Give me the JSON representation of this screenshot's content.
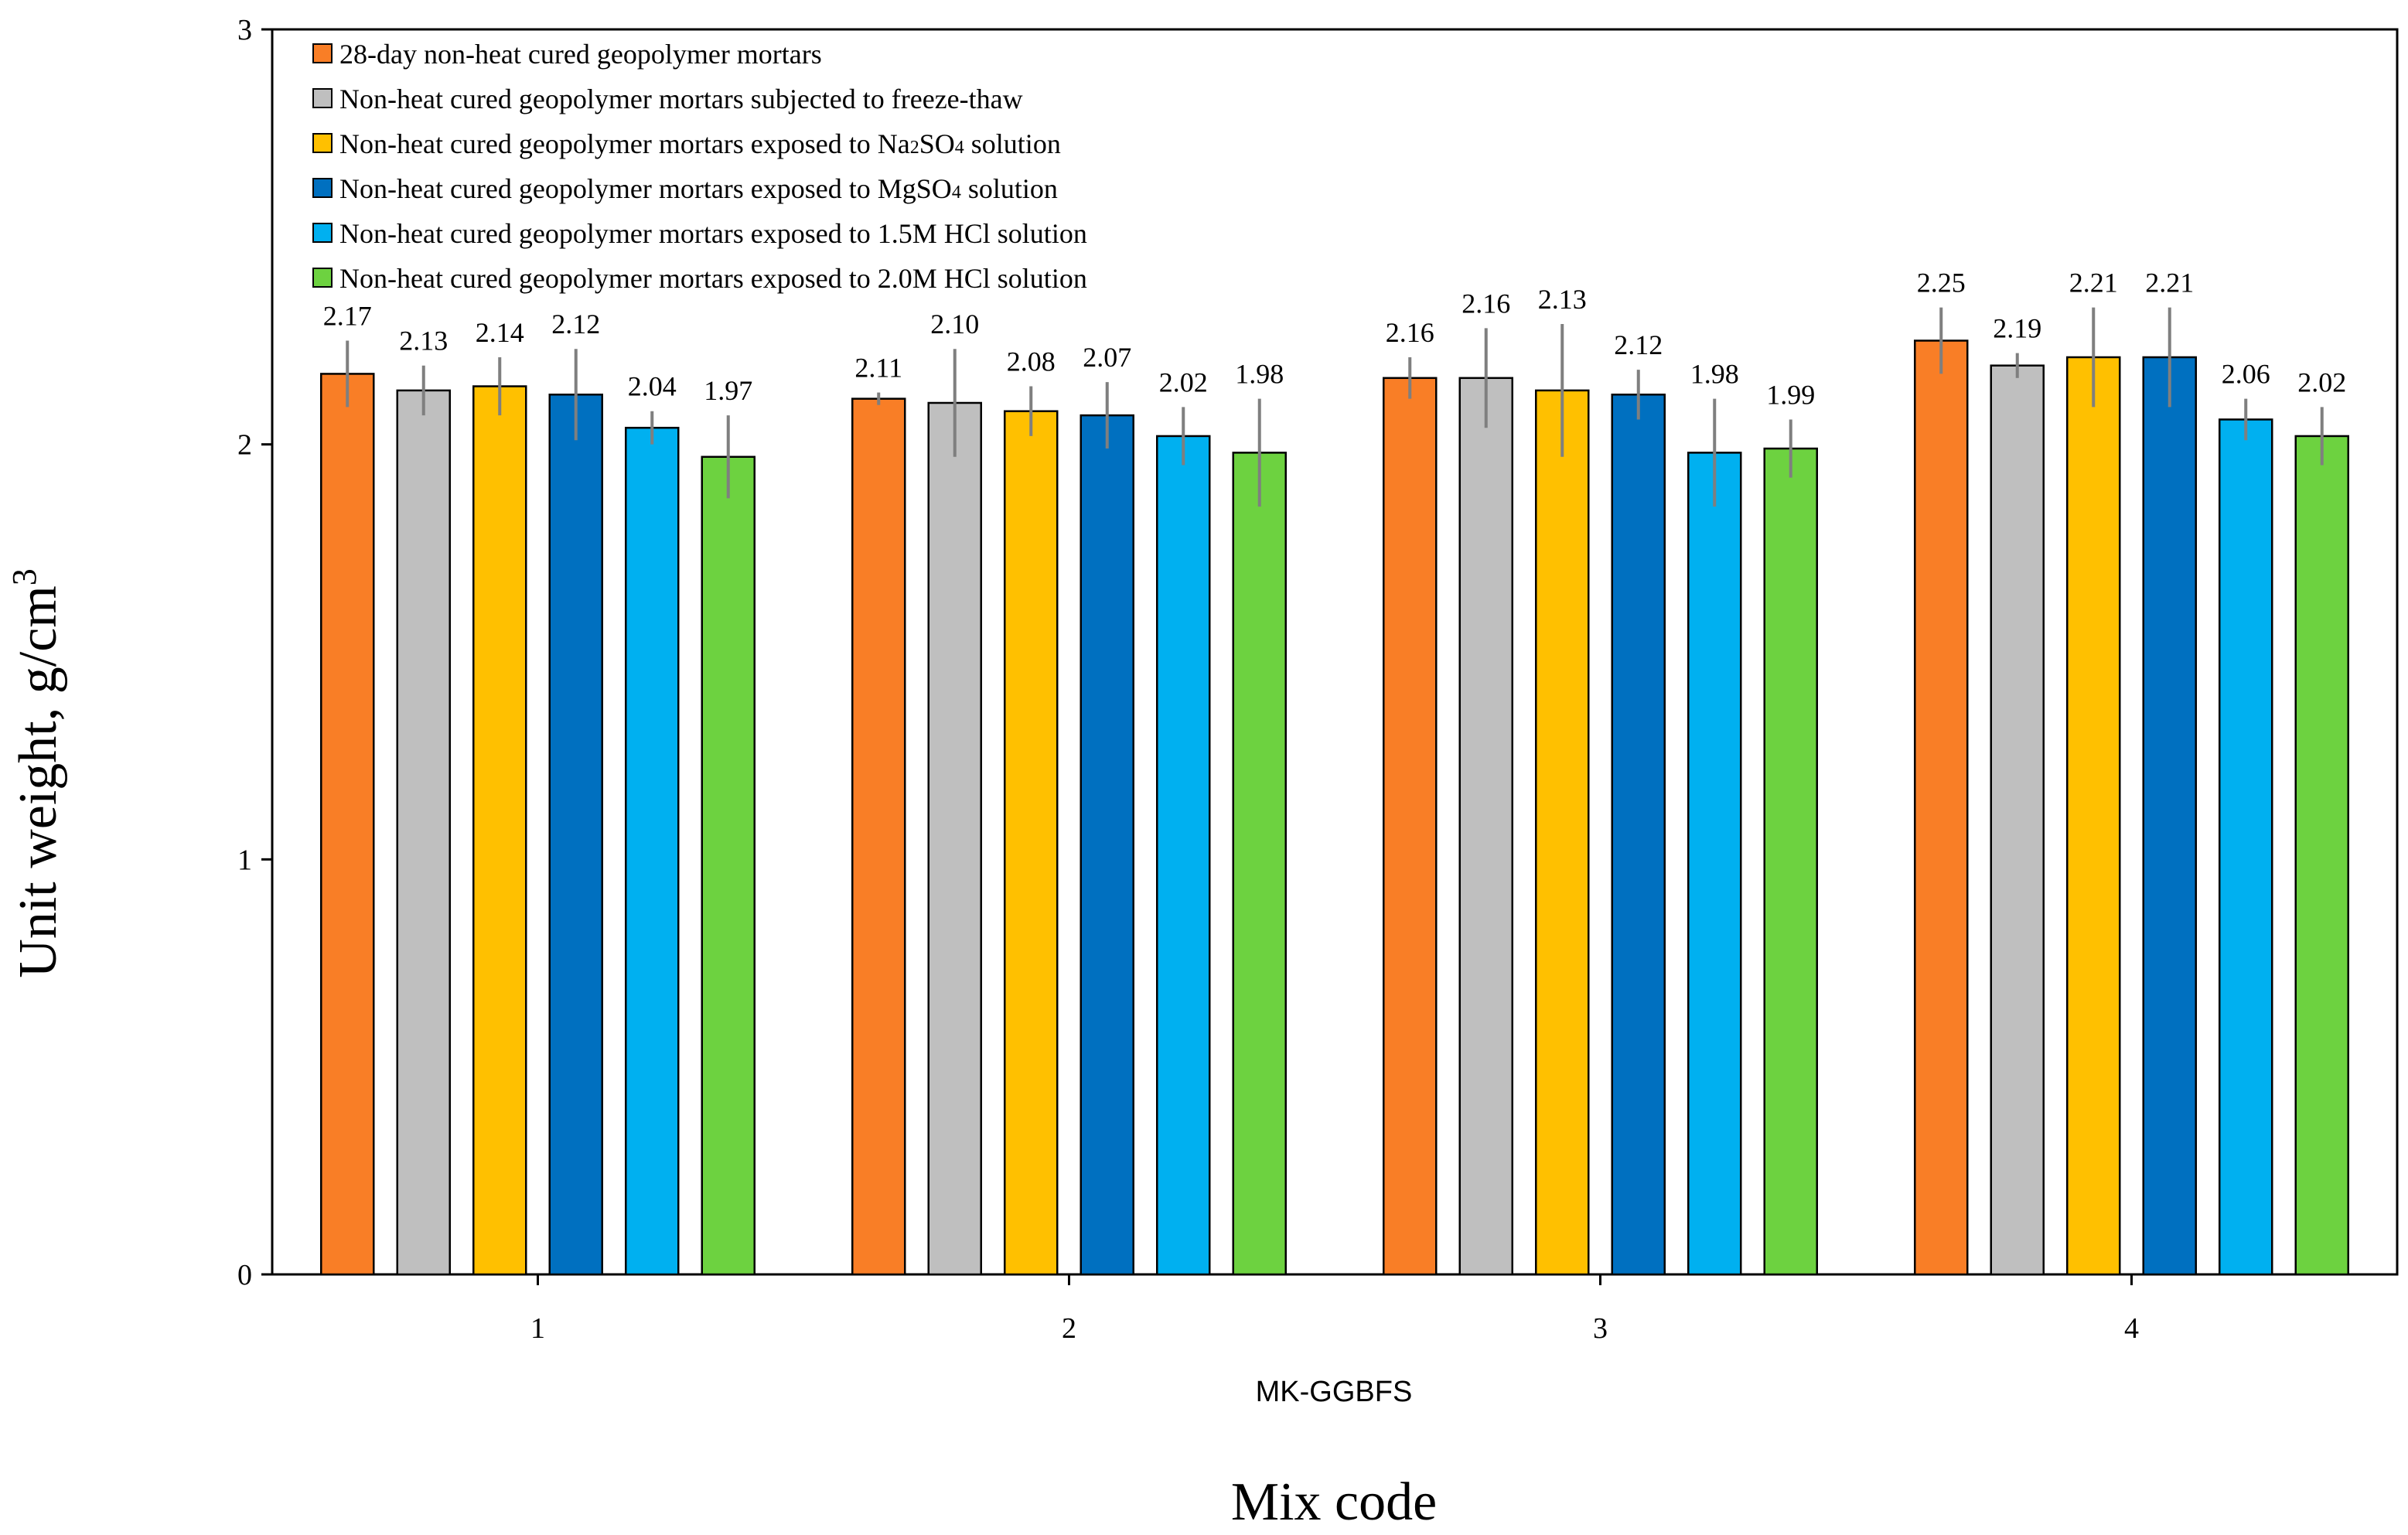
{
  "chart_data": {
    "type": "bar",
    "title": "",
    "ylabel": "Unit weight, g/cm³",
    "ylabel_base": "Unit weight, g/cm",
    "ylabel_sup": "3",
    "xlabel": "Mix code",
    "group_label": "MK-GGBFS",
    "categories": [
      "1",
      "2",
      "3",
      "4"
    ],
    "ylim": [
      0,
      3
    ],
    "yticks": [
      "0",
      "1",
      "2",
      "3"
    ],
    "grid": false,
    "legend_position": "top-left",
    "series": [
      {
        "name": "28-day non-heat cured geopolymer mortars",
        "legend_parts": [
          "28-day non-heat cured geopolymer mortars"
        ],
        "color": "#F97E26",
        "values": [
          2.17,
          2.11,
          2.16,
          2.25
        ],
        "labels": [
          "2.17",
          "2.11",
          "2.16",
          "2.25"
        ],
        "errors": [
          0.08,
          0.015,
          0.05,
          0.08
        ]
      },
      {
        "name": "Non-heat cured geopolymer mortars subjected to freeze-thaw",
        "legend_parts": [
          "Non-heat cured geopolymer mortars subjected to freeze-thaw"
        ],
        "color": "#BFBFBF",
        "values": [
          2.13,
          2.1,
          2.16,
          2.19
        ],
        "labels": [
          "2.13",
          "2.10",
          "2.16",
          "2.19"
        ],
        "errors": [
          0.06,
          0.13,
          0.12,
          0.03
        ]
      },
      {
        "name": "Non-heat cured geopolymer mortars exposed to Na₂SO₄ solution",
        "legend_parts": [
          "Non-heat cured geopolymer mortars exposed to Na",
          "2",
          "SO",
          "4",
          " solution"
        ],
        "color": "#FFC000",
        "values": [
          2.14,
          2.08,
          2.13,
          2.21
        ],
        "labels": [
          "2.14",
          "2.08",
          "2.13",
          "2.21"
        ],
        "errors": [
          0.07,
          0.06,
          0.16,
          0.12
        ]
      },
      {
        "name": "Non-heat cured geopolymer mortars exposed to MgSO₄ solution",
        "legend_parts": [
          "Non-heat cured geopolymer mortars exposed to MgSO",
          "4",
          " solution"
        ],
        "color": "#0070C0",
        "values": [
          2.12,
          2.07,
          2.12,
          2.21
        ],
        "labels": [
          "2.12",
          "2.07",
          "2.12",
          "2.21"
        ],
        "errors": [
          0.11,
          0.08,
          0.06,
          0.12
        ]
      },
      {
        "name": "Non-heat cured geopolymer mortars exposed to 1.5M HCl solution",
        "legend_parts": [
          "Non-heat cured geopolymer mortars exposed to 1.5M HCl solution"
        ],
        "color": "#00B0F0",
        "values": [
          2.04,
          2.02,
          1.98,
          2.06
        ],
        "labels": [
          "2.04",
          "2.02",
          "1.98",
          "2.06"
        ],
        "errors": [
          0.04,
          0.07,
          0.13,
          0.05
        ]
      },
      {
        "name": "Non-heat cured geopolymer mortars exposed to 2.0M HCl solution",
        "legend_parts": [
          "Non-heat cured geopolymer mortars exposed to 2.0M HCl solution"
        ],
        "color": "#6DD240",
        "values": [
          1.97,
          1.98,
          1.99,
          2.02
        ],
        "labels": [
          "1.97",
          "1.98",
          "1.99",
          "2.02"
        ],
        "errors": [
          0.1,
          0.13,
          0.07,
          0.07
        ]
      }
    ]
  }
}
